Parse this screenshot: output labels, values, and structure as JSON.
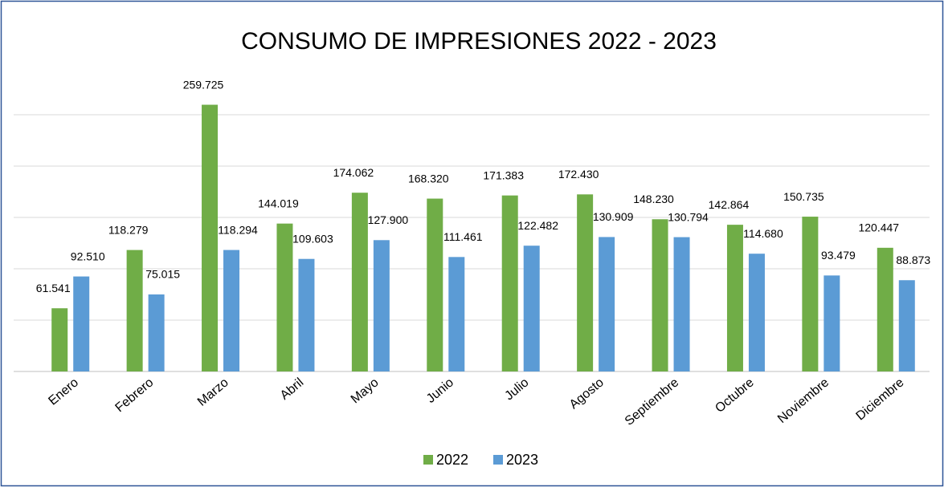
{
  "chart_data": {
    "type": "bar",
    "title": "CONSUMO DE IMPRESIONES 2022 - 2023",
    "categories": [
      "Enero",
      "Febrero",
      "Marzo",
      "Abril",
      "Mayo",
      "Junio",
      "Julio",
      "Agosto",
      "Septiembre",
      "Octubre",
      "Noviembre",
      "Diciembre"
    ],
    "series": [
      {
        "name": "2022",
        "color": "#70ad47",
        "values": [
          61541,
          118279,
          259725,
          144019,
          174062,
          168320,
          171383,
          172430,
          148230,
          142864,
          150735,
          120447
        ],
        "value_labels": [
          "61.541",
          "118.279",
          "259.725",
          "144.019",
          "174.062",
          "168.320",
          "171.383",
          "172.430",
          "148.230",
          "142.864",
          "150.735",
          "120.447"
        ]
      },
      {
        "name": "2023",
        "color": "#5b9bd5",
        "values": [
          92510,
          75015,
          118294,
          109603,
          127900,
          111461,
          122482,
          130909,
          130794,
          114680,
          93479,
          88873
        ],
        "value_labels": [
          "92.510",
          "75.015",
          "118.294",
          "109.603",
          "127.900",
          "111.461",
          "122.482",
          "130.909",
          "130.794",
          "114.680",
          "93.479",
          "88.873"
        ]
      }
    ],
    "ylim": [
      0,
      300000
    ],
    "yticks": [
      0,
      50000,
      100000,
      150000,
      200000,
      250000
    ],
    "grid": true,
    "legend": "bottom"
  }
}
